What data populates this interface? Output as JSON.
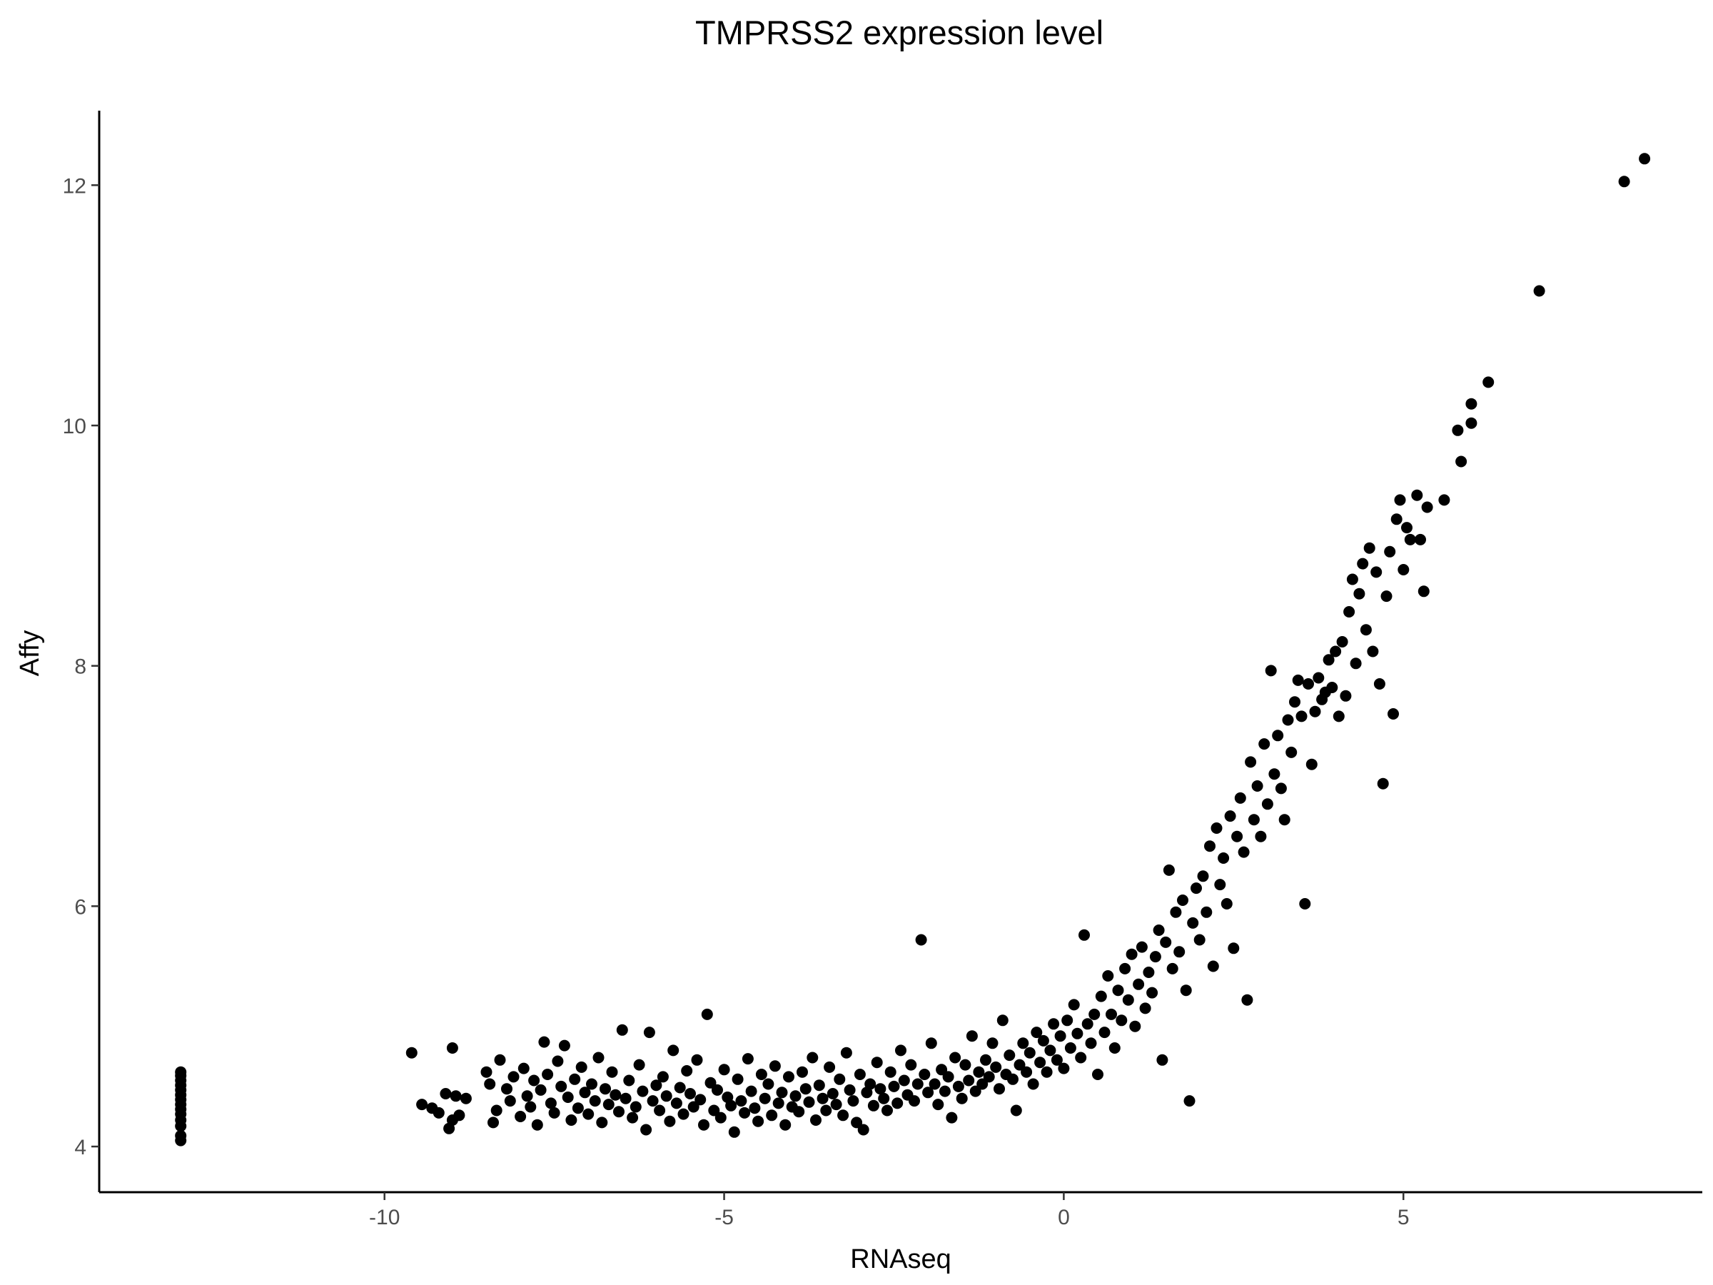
{
  "chart_data": {
    "type": "scatter",
    "title": "TMPRSS2 expression level",
    "xlabel": "RNAseq",
    "ylabel": "Affy",
    "xlim": [
      -14.2,
      9.4
    ],
    "ylim": [
      3.62,
      12.62
    ],
    "xticks": [
      -10,
      -5,
      0,
      5
    ],
    "xtick_labels": [
      "-10",
      "-5",
      "0",
      "5"
    ],
    "yticks": [
      4,
      6,
      8,
      10,
      12
    ],
    "ytick_labels": [
      "4",
      "6",
      "8",
      "10",
      "12"
    ],
    "grid": false,
    "point_color": "#000000",
    "series": [
      {
        "points": [
          [
            -13.0,
            4.05
          ],
          [
            -13.0,
            4.09
          ],
          [
            -13.0,
            4.17
          ],
          [
            -13.0,
            4.22
          ],
          [
            -13.0,
            4.27
          ],
          [
            -13.0,
            4.31
          ],
          [
            -13.0,
            4.35
          ],
          [
            -13.0,
            4.39
          ],
          [
            -13.0,
            4.43
          ],
          [
            -13.0,
            4.47
          ],
          [
            -13.0,
            4.51
          ],
          [
            -13.0,
            4.55
          ],
          [
            -13.0,
            4.59
          ],
          [
            -13.0,
            4.62
          ],
          [
            -9.6,
            4.78
          ],
          [
            -9.45,
            4.35
          ],
          [
            -9.3,
            4.32
          ],
          [
            -9.2,
            4.28
          ],
          [
            -9.1,
            4.44
          ],
          [
            -9.05,
            4.15
          ],
          [
            -9.0,
            4.82
          ],
          [
            -9.0,
            4.22
          ],
          [
            -8.95,
            4.42
          ],
          [
            -8.9,
            4.26
          ],
          [
            -8.8,
            4.4
          ],
          [
            -8.5,
            4.62
          ],
          [
            -8.45,
            4.52
          ],
          [
            -8.4,
            4.2
          ],
          [
            -8.35,
            4.3
          ],
          [
            -8.3,
            4.72
          ],
          [
            -8.2,
            4.48
          ],
          [
            -8.15,
            4.38
          ],
          [
            -8.1,
            4.58
          ],
          [
            -8.0,
            4.25
          ],
          [
            -7.95,
            4.65
          ],
          [
            -7.9,
            4.42
          ],
          [
            -7.85,
            4.33
          ],
          [
            -7.8,
            4.55
          ],
          [
            -7.75,
            4.18
          ],
          [
            -7.7,
            4.47
          ],
          [
            -7.65,
            4.87
          ],
          [
            -7.6,
            4.6
          ],
          [
            -7.55,
            4.36
          ],
          [
            -7.5,
            4.28
          ],
          [
            -7.45,
            4.71
          ],
          [
            -7.4,
            4.5
          ],
          [
            -7.35,
            4.84
          ],
          [
            -7.3,
            4.41
          ],
          [
            -7.25,
            4.22
          ],
          [
            -7.2,
            4.56
          ],
          [
            -7.15,
            4.32
          ],
          [
            -7.1,
            4.66
          ],
          [
            -7.05,
            4.45
          ],
          [
            -7.0,
            4.27
          ],
          [
            -6.95,
            4.52
          ],
          [
            -6.9,
            4.38
          ],
          [
            -6.85,
            4.74
          ],
          [
            -6.8,
            4.2
          ],
          [
            -6.75,
            4.48
          ],
          [
            -6.7,
            4.35
          ],
          [
            -6.65,
            4.62
          ],
          [
            -6.6,
            4.43
          ],
          [
            -6.55,
            4.29
          ],
          [
            -6.5,
            4.97
          ],
          [
            -6.45,
            4.4
          ],
          [
            -6.4,
            4.55
          ],
          [
            -6.35,
            4.24
          ],
          [
            -6.3,
            4.33
          ],
          [
            -6.25,
            4.68
          ],
          [
            -6.2,
            4.46
          ],
          [
            -6.15,
            4.14
          ],
          [
            -6.1,
            4.95
          ],
          [
            -6.05,
            4.38
          ],
          [
            -6.0,
            4.51
          ],
          [
            -5.95,
            4.3
          ],
          [
            -5.9,
            4.58
          ],
          [
            -5.85,
            4.42
          ],
          [
            -5.8,
            4.21
          ],
          [
            -5.75,
            4.8
          ],
          [
            -5.7,
            4.36
          ],
          [
            -5.65,
            4.49
          ],
          [
            -5.6,
            4.27
          ],
          [
            -5.55,
            4.63
          ],
          [
            -5.5,
            4.44
          ],
          [
            -5.45,
            4.33
          ],
          [
            -5.4,
            4.72
          ],
          [
            -5.35,
            4.39
          ],
          [
            -5.3,
            4.18
          ],
          [
            -5.25,
            5.1
          ],
          [
            -5.2,
            4.53
          ],
          [
            -5.15,
            4.3
          ],
          [
            -5.1,
            4.47
          ],
          [
            -5.05,
            4.24
          ],
          [
            -5.0,
            4.64
          ],
          [
            -4.95,
            4.41
          ],
          [
            -4.9,
            4.34
          ],
          [
            -4.85,
            4.12
          ],
          [
            -4.8,
            4.56
          ],
          [
            -4.75,
            4.38
          ],
          [
            -4.7,
            4.28
          ],
          [
            -4.65,
            4.73
          ],
          [
            -4.6,
            4.46
          ],
          [
            -4.55,
            4.32
          ],
          [
            -4.5,
            4.21
          ],
          [
            -4.45,
            4.6
          ],
          [
            -4.4,
            4.4
          ],
          [
            -4.35,
            4.52
          ],
          [
            -4.3,
            4.26
          ],
          [
            -4.25,
            4.67
          ],
          [
            -4.2,
            4.36
          ],
          [
            -4.15,
            4.45
          ],
          [
            -4.1,
            4.18
          ],
          [
            -4.05,
            4.58
          ],
          [
            -4.0,
            4.33
          ],
          [
            -3.95,
            4.42
          ],
          [
            -3.9,
            4.29
          ],
          [
            -3.85,
            4.62
          ],
          [
            -3.8,
            4.48
          ],
          [
            -3.75,
            4.37
          ],
          [
            -3.7,
            4.74
          ],
          [
            -3.65,
            4.22
          ],
          [
            -3.6,
            4.51
          ],
          [
            -3.55,
            4.4
          ],
          [
            -3.5,
            4.3
          ],
          [
            -3.45,
            4.66
          ],
          [
            -3.4,
            4.44
          ],
          [
            -3.35,
            4.35
          ],
          [
            -3.3,
            4.56
          ],
          [
            -3.25,
            4.26
          ],
          [
            -3.2,
            4.78
          ],
          [
            -3.15,
            4.47
          ],
          [
            -3.1,
            4.38
          ],
          [
            -3.05,
            4.2
          ],
          [
            -3.0,
            4.6
          ],
          [
            -2.95,
            4.14
          ],
          [
            -2.9,
            4.45
          ],
          [
            -2.85,
            4.52
          ],
          [
            -2.8,
            4.34
          ],
          [
            -2.75,
            4.7
          ],
          [
            -2.7,
            4.48
          ],
          [
            -2.65,
            4.4
          ],
          [
            -2.6,
            4.3
          ],
          [
            -2.55,
            4.62
          ],
          [
            -2.5,
            4.5
          ],
          [
            -2.45,
            4.36
          ],
          [
            -2.4,
            4.8
          ],
          [
            -2.35,
            4.55
          ],
          [
            -2.3,
            4.43
          ],
          [
            -2.25,
            4.68
          ],
          [
            -2.2,
            4.38
          ],
          [
            -2.15,
            4.52
          ],
          [
            -2.1,
            5.72
          ],
          [
            -2.05,
            4.6
          ],
          [
            -2.0,
            4.45
          ],
          [
            -1.95,
            4.86
          ],
          [
            -1.9,
            4.52
          ],
          [
            -1.85,
            4.35
          ],
          [
            -1.8,
            4.64
          ],
          [
            -1.75,
            4.46
          ],
          [
            -1.7,
            4.58
          ],
          [
            -1.65,
            4.24
          ],
          [
            -1.6,
            4.74
          ],
          [
            -1.55,
            4.5
          ],
          [
            -1.5,
            4.4
          ],
          [
            -1.45,
            4.68
          ],
          [
            -1.4,
            4.55
          ],
          [
            -1.35,
            4.92
          ],
          [
            -1.3,
            4.46
          ],
          [
            -1.25,
            4.62
          ],
          [
            -1.2,
            4.52
          ],
          [
            -1.15,
            4.72
          ],
          [
            -1.1,
            4.58
          ],
          [
            -1.05,
            4.86
          ],
          [
            -1.0,
            4.66
          ],
          [
            -0.95,
            4.48
          ],
          [
            -0.9,
            5.05
          ],
          [
            -0.85,
            4.6
          ],
          [
            -0.8,
            4.76
          ],
          [
            -0.75,
            4.56
          ],
          [
            -0.7,
            4.3
          ],
          [
            -0.65,
            4.68
          ],
          [
            -0.6,
            4.86
          ],
          [
            -0.55,
            4.62
          ],
          [
            -0.5,
            4.78
          ],
          [
            -0.45,
            4.52
          ],
          [
            -0.4,
            4.95
          ],
          [
            -0.35,
            4.7
          ],
          [
            -0.3,
            4.88
          ],
          [
            -0.25,
            4.62
          ],
          [
            -0.2,
            4.8
          ],
          [
            -0.15,
            5.02
          ],
          [
            -0.1,
            4.72
          ],
          [
            -0.05,
            4.92
          ],
          [
            0.0,
            4.65
          ],
          [
            0.05,
            5.05
          ],
          [
            0.1,
            4.82
          ],
          [
            0.15,
            5.18
          ],
          [
            0.2,
            4.94
          ],
          [
            0.25,
            4.74
          ],
          [
            0.3,
            5.76
          ],
          [
            0.35,
            5.02
          ],
          [
            0.4,
            4.86
          ],
          [
            0.45,
            5.1
          ],
          [
            0.5,
            4.6
          ],
          [
            0.55,
            5.25
          ],
          [
            0.6,
            4.95
          ],
          [
            0.65,
            5.42
          ],
          [
            0.7,
            5.1
          ],
          [
            0.75,
            4.82
          ],
          [
            0.8,
            5.3
          ],
          [
            0.85,
            5.05
          ],
          [
            0.9,
            5.48
          ],
          [
            0.95,
            5.22
          ],
          [
            1.0,
            5.6
          ],
          [
            1.05,
            5.0
          ],
          [
            1.1,
            5.35
          ],
          [
            1.15,
            5.66
          ],
          [
            1.2,
            5.15
          ],
          [
            1.25,
            5.45
          ],
          [
            1.3,
            5.28
          ],
          [
            1.35,
            5.58
          ],
          [
            1.4,
            5.8
          ],
          [
            1.45,
            4.72
          ],
          [
            1.5,
            5.7
          ],
          [
            1.55,
            6.3
          ],
          [
            1.6,
            5.48
          ],
          [
            1.65,
            5.95
          ],
          [
            1.7,
            5.62
          ],
          [
            1.75,
            6.05
          ],
          [
            1.8,
            5.3
          ],
          [
            1.85,
            4.38
          ],
          [
            1.9,
            5.86
          ],
          [
            1.95,
            6.15
          ],
          [
            2.0,
            5.72
          ],
          [
            2.05,
            6.25
          ],
          [
            2.1,
            5.95
          ],
          [
            2.15,
            6.5
          ],
          [
            2.2,
            5.5
          ],
          [
            2.25,
            6.65
          ],
          [
            2.3,
            6.18
          ],
          [
            2.35,
            6.4
          ],
          [
            2.4,
            6.02
          ],
          [
            2.45,
            6.75
          ],
          [
            2.5,
            5.65
          ],
          [
            2.55,
            6.58
          ],
          [
            2.6,
            6.9
          ],
          [
            2.65,
            6.45
          ],
          [
            2.7,
            5.22
          ],
          [
            2.75,
            7.2
          ],
          [
            2.8,
            6.72
          ],
          [
            2.85,
            7.0
          ],
          [
            2.9,
            6.58
          ],
          [
            2.95,
            7.35
          ],
          [
            3.0,
            6.85
          ],
          [
            3.05,
            7.96
          ],
          [
            3.1,
            7.1
          ],
          [
            3.15,
            7.42
          ],
          [
            3.2,
            6.98
          ],
          [
            3.25,
            6.72
          ],
          [
            3.3,
            7.55
          ],
          [
            3.35,
            7.28
          ],
          [
            3.4,
            7.7
          ],
          [
            3.45,
            7.88
          ],
          [
            3.5,
            7.58
          ],
          [
            3.55,
            6.02
          ],
          [
            3.6,
            7.85
          ],
          [
            3.65,
            7.18
          ],
          [
            3.7,
            7.62
          ],
          [
            3.75,
            7.9
          ],
          [
            3.8,
            7.72
          ],
          [
            3.85,
            7.78
          ],
          [
            3.9,
            8.05
          ],
          [
            3.95,
            7.82
          ],
          [
            4.0,
            8.12
          ],
          [
            4.05,
            7.58
          ],
          [
            4.1,
            8.2
          ],
          [
            4.15,
            7.75
          ],
          [
            4.2,
            8.45
          ],
          [
            4.25,
            8.72
          ],
          [
            4.3,
            8.02
          ],
          [
            4.35,
            8.6
          ],
          [
            4.4,
            8.85
          ],
          [
            4.45,
            8.3
          ],
          [
            4.5,
            8.98
          ],
          [
            4.55,
            8.12
          ],
          [
            4.6,
            8.78
          ],
          [
            4.65,
            7.85
          ],
          [
            4.7,
            7.02
          ],
          [
            4.75,
            8.58
          ],
          [
            4.8,
            8.95
          ],
          [
            4.85,
            7.6
          ],
          [
            4.9,
            9.22
          ],
          [
            4.95,
            9.38
          ],
          [
            5.0,
            8.8
          ],
          [
            5.05,
            9.15
          ],
          [
            5.1,
            9.05
          ],
          [
            5.2,
            9.42
          ],
          [
            5.25,
            9.05
          ],
          [
            5.3,
            8.62
          ],
          [
            5.35,
            9.32
          ],
          [
            5.6,
            9.38
          ],
          [
            5.8,
            9.96
          ],
          [
            5.85,
            9.7
          ],
          [
            6.0,
            10.02
          ],
          [
            6.0,
            10.18
          ],
          [
            6.25,
            10.36
          ],
          [
            7.0,
            11.12
          ],
          [
            8.25,
            12.03
          ],
          [
            8.55,
            12.22
          ]
        ]
      }
    ]
  }
}
